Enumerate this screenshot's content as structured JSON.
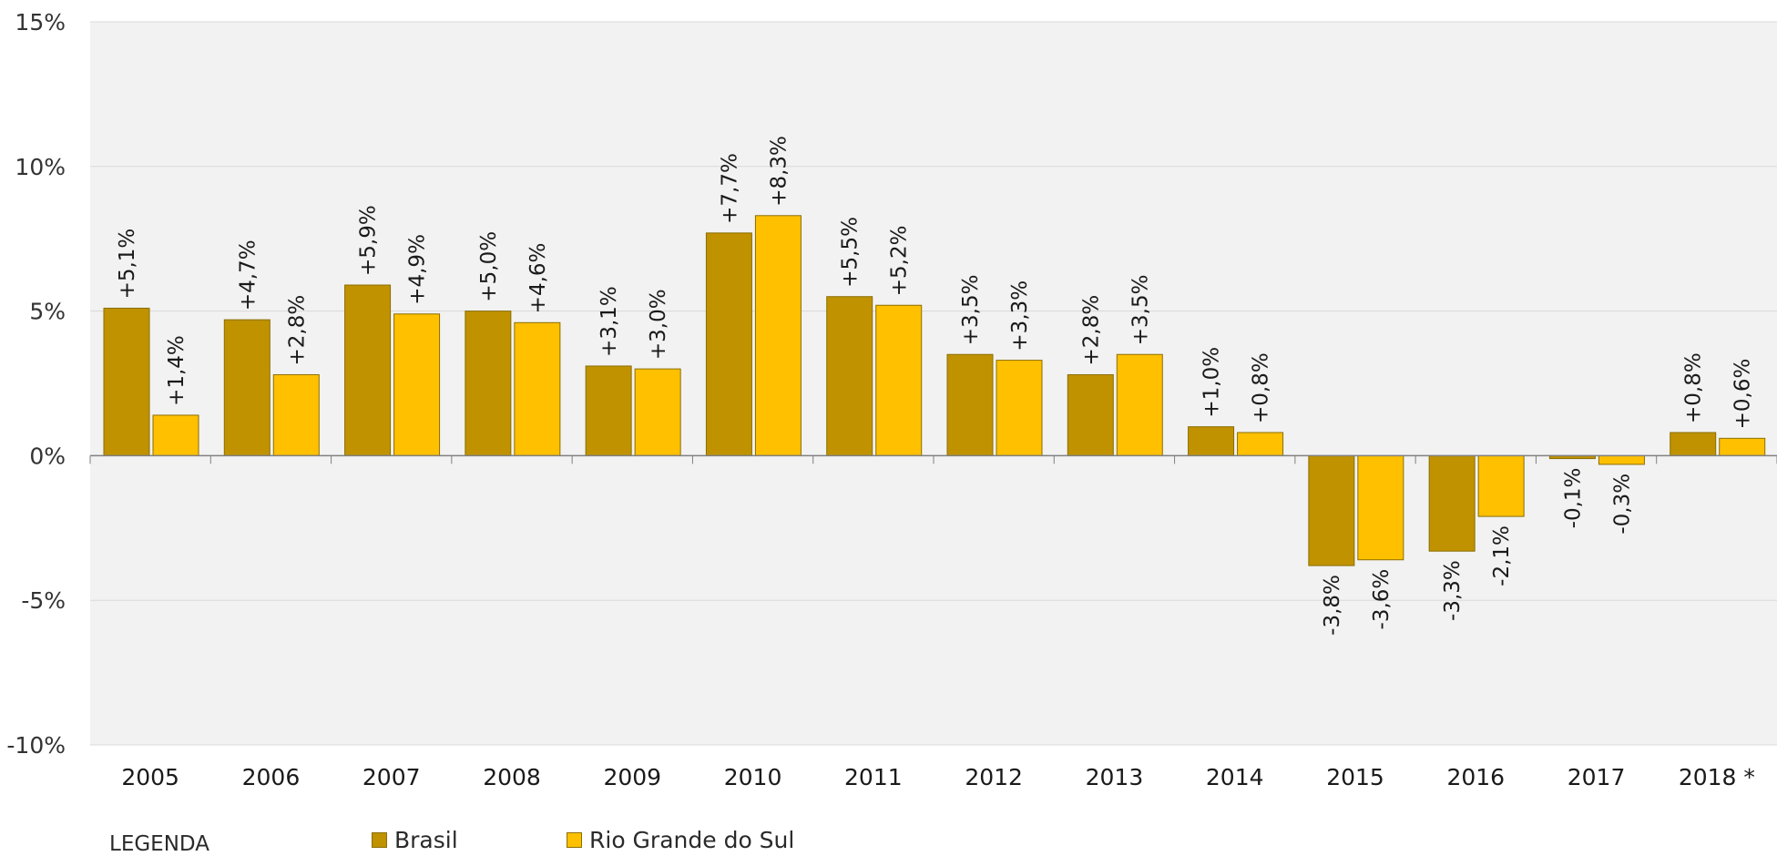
{
  "chart_data": {
    "type": "bar",
    "title": "",
    "xlabel": "",
    "ylabel": "",
    "categories": [
      "2005",
      "2006",
      "2007",
      "2008",
      "2009",
      "2010",
      "2011",
      "2012",
      "2013",
      "2014",
      "2015",
      "2016",
      "2017",
      "2018 *"
    ],
    "series": [
      {
        "name": "Brasil",
        "color": "#c09200",
        "values": [
          5.1,
          4.7,
          5.9,
          5.0,
          3.1,
          7.7,
          5.5,
          3.5,
          2.8,
          1.0,
          -3.8,
          -3.3,
          -0.1,
          0.8
        ],
        "labels": [
          "+5,1%",
          "+4,7%",
          "+5,9%",
          "+5,0%",
          "+3,1%",
          "+7,7%",
          "+5,5%",
          "+3,5%",
          "+2,8%",
          "+1,0%",
          "-3,8%",
          "-3,3%",
          "-0,1%",
          "+0,8%"
        ]
      },
      {
        "name": "Rio Grande do Sul",
        "color": "#ffc000",
        "values": [
          1.4,
          2.8,
          4.9,
          4.6,
          3.0,
          8.3,
          5.2,
          3.3,
          3.5,
          0.8,
          -3.6,
          -2.1,
          -0.3,
          0.6
        ],
        "labels": [
          "+1,4%",
          "+2,8%",
          "+4,9%",
          "+4,6%",
          "+3,0%",
          "+8,3%",
          "+5,2%",
          "+3,3%",
          "+3,5%",
          "+0,8%",
          "-3,6%",
          "-2,1%",
          "-0,3%",
          "+0,6%"
        ]
      }
    ],
    "ylim": [
      -10,
      15
    ],
    "yticks": [
      15,
      10,
      5,
      0,
      -5,
      -10
    ],
    "ytick_labels": [
      "15%",
      "10%",
      "5%",
      "0%",
      "-5%",
      "-10%"
    ],
    "grid": true,
    "plot_background": "#f2f2f2",
    "legend_position": "bottom-left"
  },
  "legend": {
    "title": "LEGENDA",
    "items": [
      {
        "label": "Brasil",
        "color": "#c09200"
      },
      {
        "label": "Rio Grande do Sul",
        "color": "#ffc000"
      }
    ]
  }
}
